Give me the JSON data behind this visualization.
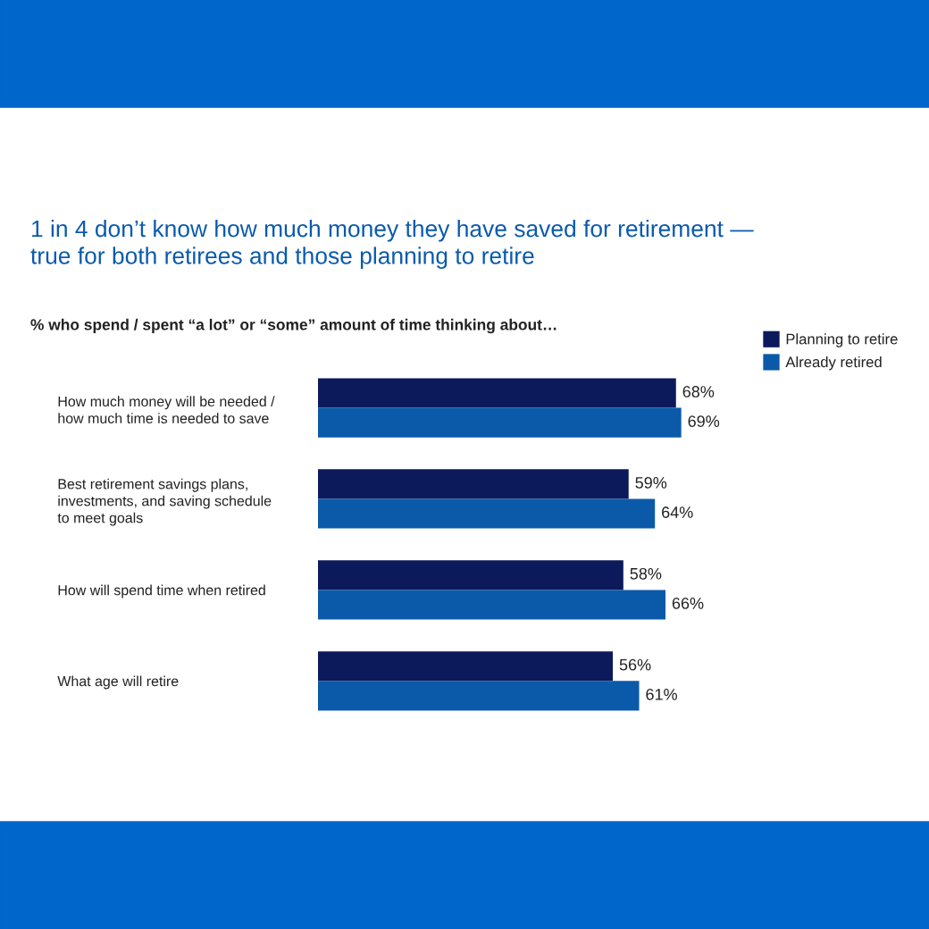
{
  "chart_data": {
    "type": "bar",
    "orientation": "horizontal",
    "title": "1 in 4 don’t know how much money they have saved for retirement —\ntrue for both retirees and those planning to retire",
    "subtitle": "% who spend / spent “a lot” or “some” amount of time thinking about…",
    "categories": [
      "How much money will be needed /\nhow much time is needed to save",
      "Best retirement savings plans,\ninvestments, and saving schedule\nto meet goals",
      "How will spend time when retired",
      "What age will retire"
    ],
    "series": [
      {
        "name": "Planning to retire",
        "color": "#0c1a5b",
        "values": [
          68,
          59,
          58,
          56
        ],
        "value_labels": [
          "68%",
          "59%",
          "58%",
          "56%"
        ]
      },
      {
        "name": "Already retired",
        "color": "#0b5aa9",
        "values": [
          69,
          64,
          66,
          61
        ],
        "value_labels": [
          "69%",
          "64%",
          "66%",
          "61%"
        ]
      }
    ],
    "tick_labels": "y",
    "grid": false,
    "legend": "top right"
  }
}
